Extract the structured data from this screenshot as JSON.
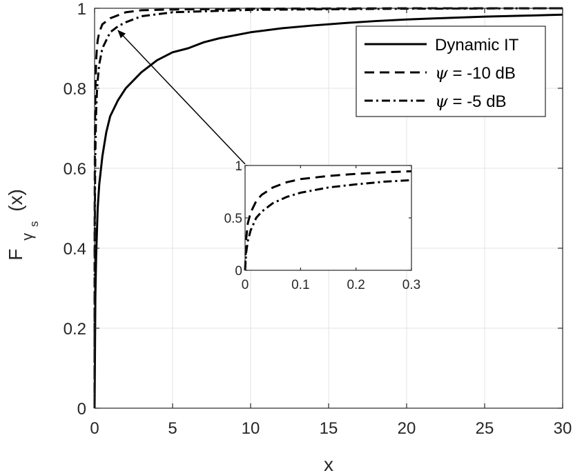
{
  "chart_data": [
    {
      "type": "line",
      "xlabel": "x",
      "ylabel": "F",
      "ylabel_subscript": "γ",
      "ylabel_subsubscript": "s",
      "ylabel_arg": "(x)",
      "xlim": [
        0,
        30
      ],
      "ylim": [
        0,
        1
      ],
      "x_ticks": [
        "0",
        "5",
        "10",
        "15",
        "20",
        "25",
        "30"
      ],
      "y_ticks": [
        "0",
        "0.2",
        "0.4",
        "0.6",
        "0.8",
        "1"
      ],
      "grid": true,
      "legend_position": "top-right",
      "series": [
        {
          "name": "Dynamic IT",
          "style": "solid",
          "x": [
            0,
            0.05,
            0.1,
            0.2,
            0.3,
            0.5,
            0.75,
            1,
            1.5,
            2,
            3,
            4,
            5,
            6,
            7,
            8,
            10,
            12,
            14,
            16,
            18,
            20,
            22,
            25,
            28,
            30
          ],
          "y": [
            0,
            0.28,
            0.38,
            0.5,
            0.56,
            0.63,
            0.69,
            0.73,
            0.77,
            0.8,
            0.84,
            0.87,
            0.89,
            0.9,
            0.915,
            0.925,
            0.94,
            0.95,
            0.957,
            0.963,
            0.968,
            0.972,
            0.975,
            0.979,
            0.982,
            0.984
          ]
        },
        {
          "name": "ψ = -10 dB",
          "legend_symbol": "ψ",
          "legend_rest": " = -10 dB",
          "style": "dashed",
          "x": [
            0,
            0.005,
            0.01,
            0.02,
            0.03,
            0.05,
            0.1,
            0.15,
            0.2,
            0.3,
            0.5,
            1,
            2,
            3,
            5,
            10,
            20,
            30
          ],
          "y": [
            0,
            0.45,
            0.55,
            0.66,
            0.72,
            0.79,
            0.87,
            0.9,
            0.92,
            0.94,
            0.96,
            0.975,
            0.99,
            0.995,
            0.997,
            0.999,
            1,
            1
          ]
        },
        {
          "name": "ψ = -5 dB",
          "legend_symbol": "ψ",
          "legend_rest": " = -5 dB",
          "style": "dashdot",
          "x": [
            0,
            0.005,
            0.01,
            0.02,
            0.03,
            0.05,
            0.1,
            0.15,
            0.2,
            0.3,
            0.5,
            1,
            1.5,
            2,
            3,
            5,
            10,
            20,
            30
          ],
          "y": [
            0,
            0.28,
            0.38,
            0.5,
            0.56,
            0.64,
            0.74,
            0.79,
            0.82,
            0.86,
            0.9,
            0.94,
            0.955,
            0.965,
            0.98,
            0.99,
            0.996,
            0.999,
            1
          ]
        }
      ]
    },
    {
      "type": "line",
      "role": "inset",
      "xlim": [
        0,
        0.3
      ],
      "ylim": [
        0,
        1
      ],
      "x_ticks": [
        "0",
        "0.1",
        "0.2",
        "0.3"
      ],
      "y_ticks": [
        "0",
        "0.5",
        "1"
      ],
      "zoom_target": {
        "x": 1.5,
        "y": 0.955
      },
      "series": [
        {
          "name": "ψ = -10 dB",
          "style": "dashed",
          "x": [
            0,
            0.002,
            0.005,
            0.01,
            0.02,
            0.03,
            0.05,
            0.075,
            0.1,
            0.15,
            0.2,
            0.25,
            0.3
          ],
          "y": [
            0,
            0.3,
            0.45,
            0.55,
            0.66,
            0.72,
            0.79,
            0.84,
            0.87,
            0.9,
            0.92,
            0.935,
            0.945
          ]
        },
        {
          "name": "ψ = -5 dB",
          "style": "dashdot",
          "x": [
            0,
            0.002,
            0.005,
            0.01,
            0.02,
            0.03,
            0.05,
            0.075,
            0.1,
            0.15,
            0.2,
            0.25,
            0.3
          ],
          "y": [
            0,
            0.17,
            0.28,
            0.38,
            0.5,
            0.56,
            0.64,
            0.7,
            0.74,
            0.79,
            0.82,
            0.845,
            0.86
          ]
        }
      ]
    }
  ]
}
